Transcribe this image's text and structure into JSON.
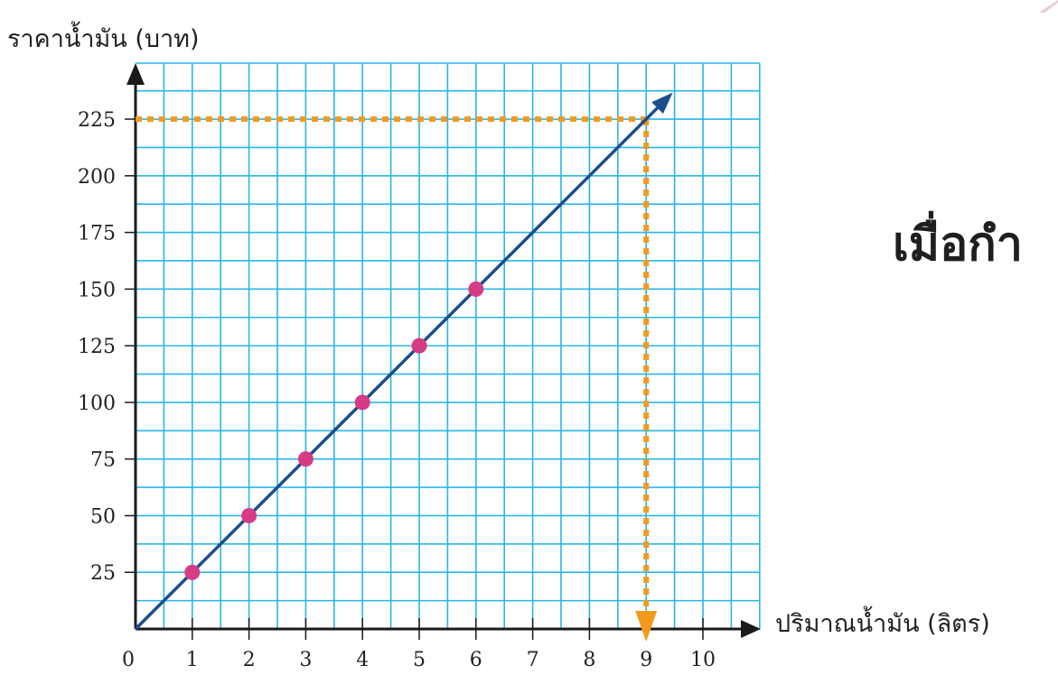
{
  "chart_data": {
    "type": "line",
    "ylabel": "ราคาน้ำมัน (บาท)",
    "xlabel": "ปริมาณน้ำมัน (ลิตร)",
    "x_ticks": [
      "0",
      "1",
      "2",
      "3",
      "4",
      "5",
      "6",
      "7",
      "8",
      "9",
      "10"
    ],
    "y_ticks": [
      "25",
      "50",
      "75",
      "100",
      "125",
      "150",
      "175",
      "200",
      "225"
    ],
    "xlim": [
      0,
      10.5
    ],
    "ylim": [
      0,
      250
    ],
    "grid": true,
    "minor_grid_step_x": 0.5,
    "minor_grid_step_y": 12.5,
    "series": [
      {
        "points": [
          {
            "x": 1,
            "y": 25
          },
          {
            "x": 2,
            "y": 50
          },
          {
            "x": 3,
            "y": 75
          },
          {
            "x": 4,
            "y": 100
          },
          {
            "x": 5,
            "y": 125
          },
          {
            "x": 6,
            "y": 150
          }
        ],
        "line": {
          "from": [
            0,
            0
          ],
          "to": [
            9.4,
            235
          ],
          "arrow": true
        }
      }
    ],
    "guide_lines": [
      {
        "x": 9,
        "y": 225,
        "style": "dotted",
        "arrow_down": true
      }
    ],
    "colors": {
      "grid": "#29b6e8",
      "line": "#1a4e8c",
      "points": "#d63b86",
      "guide": "#f39a1e",
      "axis": "#1a1a1a"
    }
  },
  "caption": {
    "text": "เมื่อกำ"
  }
}
